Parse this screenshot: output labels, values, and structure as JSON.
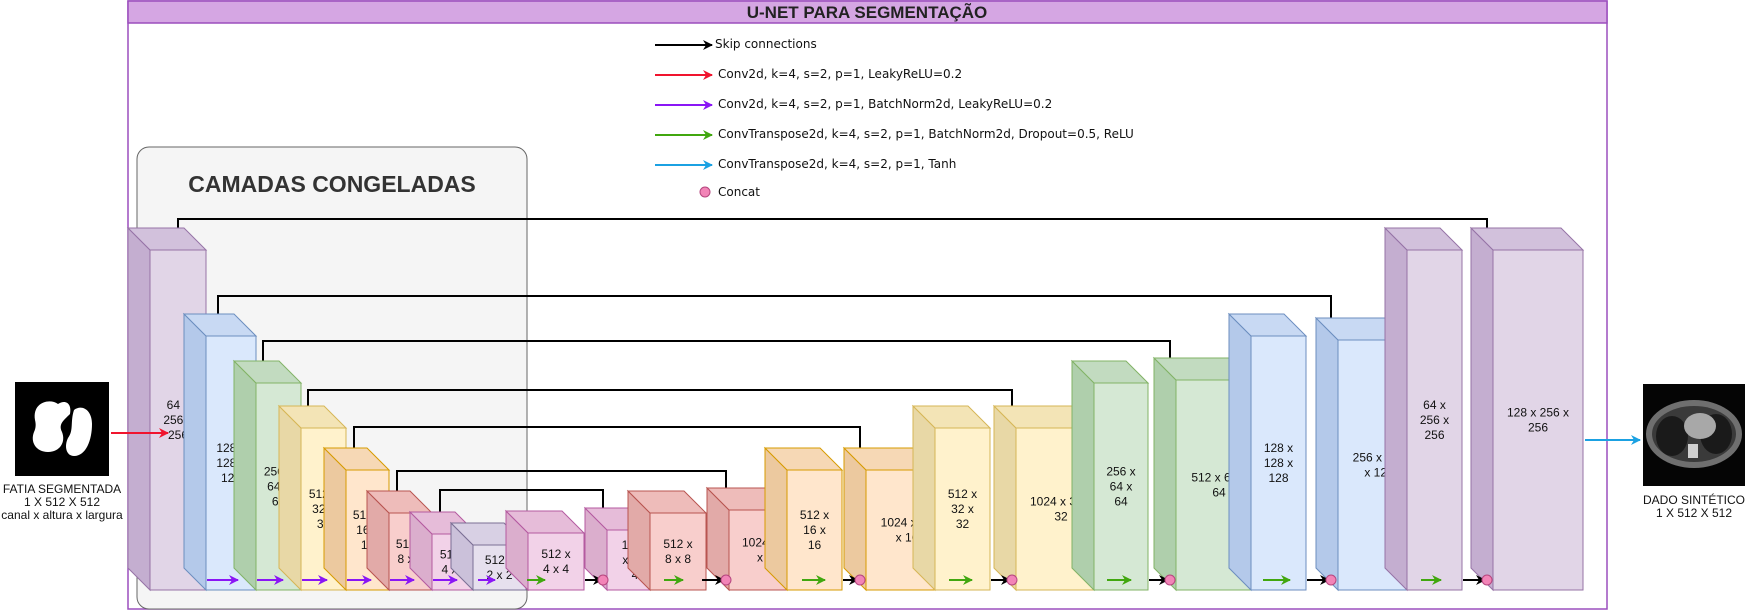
{
  "title": "U-NET PARA SEGMENTAÇÃO",
  "frozen_label": "CAMADAS CONGELADAS",
  "legend": [
    {
      "label": "Skip connections",
      "color": "#000000",
      "kind": "arrow"
    },
    {
      "label": "Conv2d, k=4, s=2, p=1, LeakyReLU=0.2",
      "color": "#f0142e",
      "kind": "arrow"
    },
    {
      "label": "Conv2d, k=4, s=2, p=1, BatchNorm2d, LeakyReLU=0.2",
      "color": "#8a16f5",
      "kind": "arrow"
    },
    {
      "label": "ConvTranspose2d, k=4, s=2, p=1, BatchNorm2d, Dropout=0.5, ReLU",
      "color": "#41a70f",
      "kind": "arrow"
    },
    {
      "label": "ConvTranspose2d, k=4, s=2, p=1, Tanh",
      "color": "#1ba1e2",
      "kind": "arrow"
    },
    {
      "label": "Concat",
      "color": "#f284b7",
      "kind": "dot"
    }
  ],
  "input": {
    "line1": "FATIA SEGMENTADA",
    "line2": "1 X 512 X 512",
    "line3": "canal x altura x largura"
  },
  "output": {
    "line1": "DADO SINTÉTICO",
    "line2": "1 X 512 X 512"
  },
  "blocks": [
    {
      "id": "e1",
      "lines": [
        "64 x",
        "256 x",
        "256"
      ],
      "color": "purple"
    },
    {
      "id": "e2",
      "lines": [
        "128 x",
        "128 x",
        "128"
      ],
      "color": "blue"
    },
    {
      "id": "e3",
      "lines": [
        "256 x",
        "64 x",
        "64"
      ],
      "color": "green"
    },
    {
      "id": "e4",
      "lines": [
        "512 x",
        "32 x",
        "32"
      ],
      "color": "yellow"
    },
    {
      "id": "e5",
      "lines": [
        "512 x",
        "16 x",
        "16"
      ],
      "color": "orange"
    },
    {
      "id": "e6",
      "lines": [
        "512 x",
        "8 x 8"
      ],
      "color": "red"
    },
    {
      "id": "e7",
      "lines": [
        "512 x",
        "4 x 4"
      ],
      "color": "pink"
    },
    {
      "id": "b",
      "lines": [
        "512 x",
        "2 x 2"
      ],
      "color": "lavender"
    },
    {
      "id": "d7",
      "lines": [
        "512 x",
        "4 x 4"
      ],
      "color": "pink"
    },
    {
      "id": "c7",
      "lines": [
        "1024",
        "x 4 x",
        "4"
      ],
      "color": "pink"
    },
    {
      "id": "d6",
      "lines": [
        "512 x",
        "8 x 8"
      ],
      "color": "red"
    },
    {
      "id": "c6",
      "lines": [
        "1024 x 8",
        "x 8"
      ],
      "color": "red"
    },
    {
      "id": "d5",
      "lines": [
        "512 x",
        "16 x",
        "16"
      ],
      "color": "orange"
    },
    {
      "id": "c5",
      "lines": [
        "1024 x 16",
        "x 16"
      ],
      "color": "orange"
    },
    {
      "id": "d4",
      "lines": [
        "512 x",
        "32 x",
        "32"
      ],
      "color": "yellow"
    },
    {
      "id": "c4",
      "lines": [
        "1024 x 32 x",
        "32"
      ],
      "color": "yellow"
    },
    {
      "id": "d3",
      "lines": [
        "256 x",
        "64 x",
        "64"
      ],
      "color": "green"
    },
    {
      "id": "c3",
      "lines": [
        "512 x 64 x",
        "64"
      ],
      "color": "green"
    },
    {
      "id": "d2",
      "lines": [
        "128 x",
        "128 x",
        "128"
      ],
      "color": "blue"
    },
    {
      "id": "c2",
      "lines": [
        "256 x 128",
        "x 128"
      ],
      "color": "blue"
    },
    {
      "id": "d1",
      "lines": [
        "64 x",
        "256 x",
        "256"
      ],
      "color": "purple"
    },
    {
      "id": "c1",
      "lines": [
        "128 x 256 x",
        "256"
      ],
      "color": "purple"
    }
  ],
  "colors": {
    "purple": {
      "fill": "#e1d5e7",
      "stroke": "#9673a6",
      "top": "#d2c1dc",
      "side": "#c4aed0"
    },
    "blue": {
      "fill": "#dae8fc",
      "stroke": "#6c8ebf",
      "top": "#c8d9f3",
      "side": "#b4c9ea"
    },
    "green": {
      "fill": "#d5e8d4",
      "stroke": "#82b366",
      "top": "#c2dbc0",
      "side": "#afcfac"
    },
    "yellow": {
      "fill": "#fff2cc",
      "stroke": "#d6b656",
      "top": "#f3e4b6",
      "side": "#e8d8a6"
    },
    "orange": {
      "fill": "#ffe6cc",
      "stroke": "#d79b00",
      "top": "#f6d8b5",
      "side": "#ecc99f"
    },
    "red": {
      "fill": "#f8cecc",
      "stroke": "#b85450",
      "top": "#eebcba",
      "side": "#e2aaa8"
    },
    "pink": {
      "fill": "#f2d2e8",
      "stroke": "#b45aa0",
      "top": "#e6bcd9",
      "side": "#dbaecd"
    },
    "lavender": {
      "fill": "#e6e0ee",
      "stroke": "#7b6f95",
      "top": "#d8d0e4",
      "side": "#cbc1da"
    },
    "frame_header": "#d5a6e3",
    "frame_border": "#9b4fbd"
  }
}
